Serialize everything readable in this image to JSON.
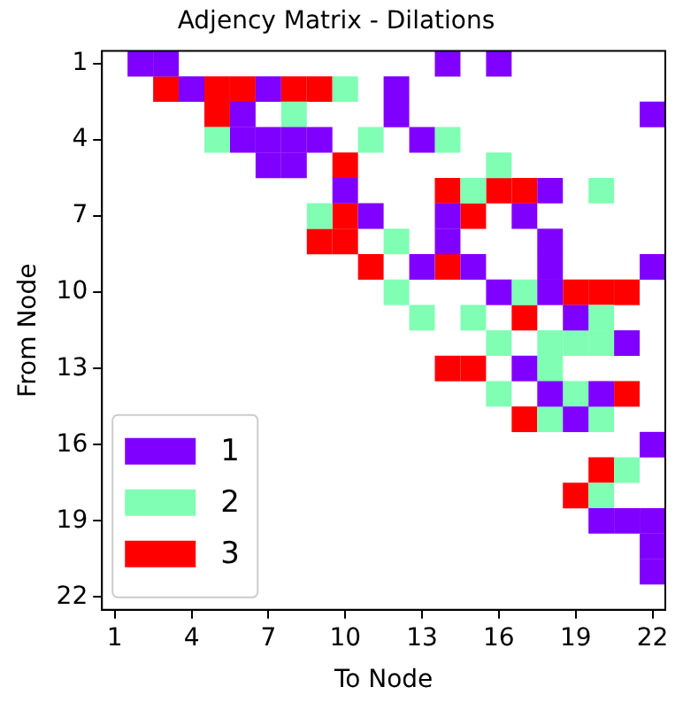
{
  "chart_data": {
    "type": "scatter",
    "title": "Adjency Matrix - Dilations",
    "xlabel": "To Node",
    "ylabel": "From Node",
    "xlim": [
      0.5,
      22.5
    ],
    "ylim": [
      22.5,
      0.5
    ],
    "xticks": [
      1,
      4,
      7,
      10,
      13,
      16,
      19,
      22
    ],
    "yticks": [
      1,
      4,
      7,
      10,
      13,
      16,
      19,
      22
    ],
    "series": [
      {
        "name": "1",
        "color": "#8000ff",
        "x": [
          2,
          3,
          14,
          16,
          4,
          7,
          12,
          6,
          12,
          22,
          6,
          7,
          8,
          9,
          13,
          7,
          8,
          10,
          18,
          11,
          14,
          17,
          14,
          18,
          13,
          15,
          18,
          22,
          16,
          18,
          19,
          21,
          17,
          18,
          20,
          19,
          22,
          20,
          21,
          22,
          22,
          22
        ],
        "values": [
          1,
          1,
          1,
          1,
          2,
          2,
          2,
          3,
          3,
          3,
          4,
          4,
          4,
          4,
          4,
          5,
          5,
          6,
          6,
          7,
          7,
          7,
          8,
          8,
          9,
          9,
          9,
          9,
          10,
          10,
          11,
          12,
          13,
          14,
          14,
          15,
          16,
          19,
          19,
          19,
          20,
          21
        ]
      },
      {
        "name": "2",
        "color": "#80ffb4",
        "x": [
          10,
          8,
          5,
          11,
          14,
          16,
          15,
          20,
          9,
          12,
          12,
          17,
          13,
          15,
          20,
          16,
          18,
          19,
          20,
          18,
          16,
          19,
          18,
          20,
          21,
          20
        ],
        "values": [
          2,
          3,
          4,
          4,
          4,
          5,
          6,
          6,
          7,
          8,
          10,
          10,
          11,
          11,
          11,
          12,
          12,
          12,
          12,
          13,
          14,
          14,
          15,
          15,
          17,
          18
        ]
      },
      {
        "name": "3",
        "color": "#ff0000",
        "x": [
          3,
          5,
          6,
          8,
          9,
          5,
          10,
          14,
          16,
          17,
          10,
          15,
          9,
          10,
          11,
          14,
          19,
          20,
          21,
          17,
          14,
          15,
          21,
          17,
          20,
          19
        ],
        "values": [
          2,
          2,
          2,
          2,
          2,
          3,
          5,
          6,
          6,
          6,
          7,
          7,
          8,
          8,
          9,
          9,
          10,
          10,
          10,
          11,
          13,
          13,
          14,
          15,
          17,
          18
        ]
      }
    ],
    "marker": "square",
    "legend": "bottom left",
    "grid": false
  }
}
